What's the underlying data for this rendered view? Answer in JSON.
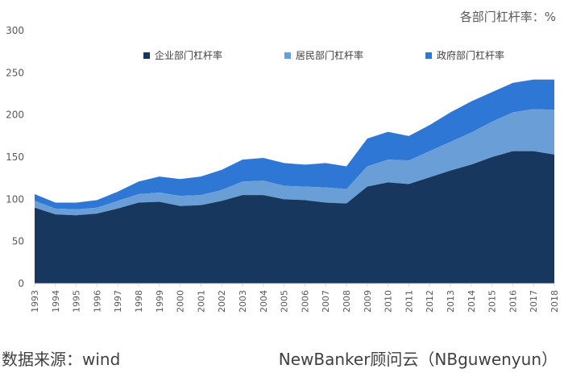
{
  "chart_data": {
    "type": "area",
    "stacked": true,
    "unit_label": "各部门杠杆率：%",
    "x": [
      "1993",
      "1994",
      "1995",
      "1996",
      "1997",
      "1998",
      "1999",
      "2000",
      "2001",
      "2002",
      "2003",
      "2004",
      "2005",
      "2006",
      "2007",
      "2008",
      "2009",
      "2010",
      "2011",
      "2012",
      "2013",
      "2014",
      "2015",
      "2016",
      "2017",
      "2018"
    ],
    "series": [
      {
        "name": "企业部门杠杆率",
        "color": "#17375e",
        "values": [
          90,
          82,
          81,
          83,
          89,
          96,
          97,
          92,
          93,
          98,
          105,
          105,
          100,
          99,
          96,
          95,
          115,
          120,
          118,
          126,
          134,
          141,
          150,
          157,
          157,
          153
        ]
      },
      {
        "name": "居民部门杠杆率",
        "color": "#6a9ed6",
        "values": [
          8,
          7,
          7,
          7,
          9,
          10,
          11,
          12,
          12,
          13,
          16,
          17,
          16,
          16,
          18,
          17,
          24,
          27,
          28,
          31,
          34,
          38,
          42,
          46,
          50,
          53
        ]
      },
      {
        "name": "政府部门杠杆率",
        "color": "#2e77d5",
        "values": [
          8,
          7,
          8,
          9,
          11,
          15,
          19,
          20,
          22,
          24,
          26,
          27,
          27,
          26,
          29,
          27,
          33,
          33,
          29,
          31,
          35,
          37,
          35,
          35,
          35,
          36
        ]
      }
    ],
    "ylim": [
      0,
      300
    ],
    "yticks": [
      0,
      50,
      100,
      150,
      200,
      250,
      300
    ],
    "grid": false,
    "legend_position": "top"
  },
  "footer": {
    "source": "数据来源：wind",
    "brand": "NewBanker顾问云（NBguwenyun）"
  }
}
